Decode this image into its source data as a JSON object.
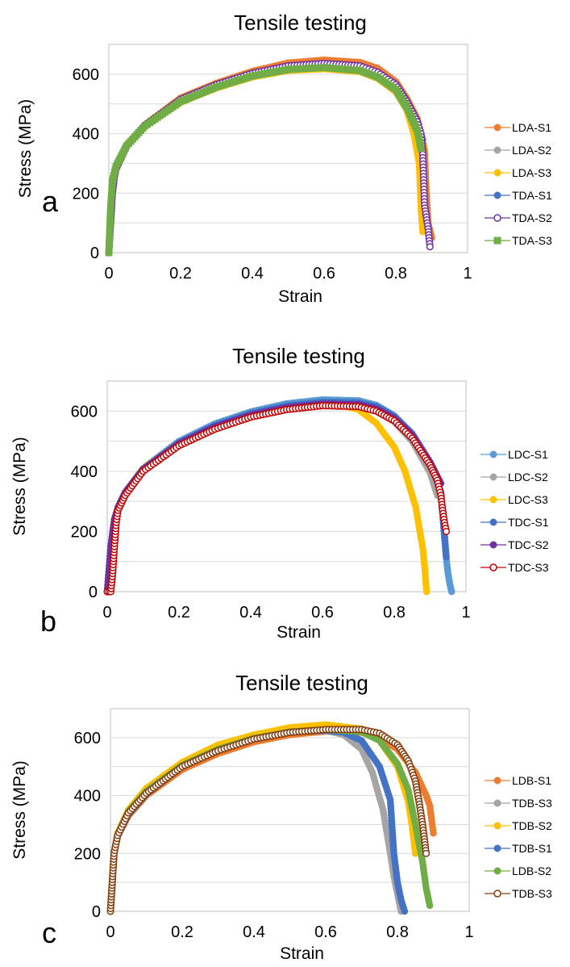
{
  "chart_data": [
    {
      "type": "scatter",
      "panel_letter": "a",
      "title": "Tensile testing",
      "xlabel": "Strain",
      "ylabel": "Stress (MPa)",
      "xlim": [
        0,
        1
      ],
      "ylim": [
        0,
        700
      ],
      "xticks": [
        "0",
        "0.2",
        "0.4",
        "0.6",
        "0.8",
        "1"
      ],
      "yticks": [
        "0",
        "200",
        "400",
        "600"
      ],
      "grid": true,
      "legend_position": "right",
      "series": [
        {
          "name": "LDA-S1",
          "color": "#ED7D31",
          "marker": "filled-circle",
          "x": [
            0,
            0.005,
            0.01,
            0.02,
            0.05,
            0.1,
            0.2,
            0.3,
            0.4,
            0.5,
            0.6,
            0.7,
            0.75,
            0.8,
            0.83,
            0.86,
            0.88,
            0.885,
            0.89,
            0.9
          ],
          "y": [
            0,
            150,
            240,
            290,
            360,
            430,
            520,
            570,
            610,
            638,
            648,
            640,
            620,
            575,
            520,
            450,
            345,
            200,
            100,
            50
          ]
        },
        {
          "name": "LDA-S2",
          "color": "#A5A5A5",
          "marker": "filled-circle",
          "x": [
            0,
            0.005,
            0.01,
            0.02,
            0.05,
            0.1,
            0.2,
            0.3,
            0.4,
            0.5,
            0.6,
            0.7,
            0.75,
            0.8,
            0.83,
            0.86,
            0.875,
            0.88
          ],
          "y": [
            0,
            150,
            240,
            290,
            360,
            425,
            510,
            560,
            598,
            622,
            630,
            622,
            600,
            560,
            505,
            430,
            330,
            250
          ]
        },
        {
          "name": "LDA-S3",
          "color": "#FFC000",
          "marker": "filled-circle",
          "x": [
            0,
            0.005,
            0.01,
            0.02,
            0.05,
            0.1,
            0.2,
            0.3,
            0.4,
            0.5,
            0.6,
            0.7,
            0.75,
            0.8,
            0.83,
            0.85,
            0.865,
            0.87,
            0.875
          ],
          "y": [
            0,
            150,
            240,
            290,
            360,
            425,
            505,
            553,
            590,
            612,
            618,
            608,
            585,
            540,
            480,
            400,
            300,
            150,
            70
          ]
        },
        {
          "name": "TDA-S1",
          "color": "#4472C4",
          "marker": "filled-circle",
          "x": [
            0,
            0.005,
            0.01,
            0.02,
            0.05,
            0.1,
            0.2,
            0.3,
            0.4,
            0.5,
            0.6,
            0.7,
            0.75,
            0.8,
            0.83,
            0.86,
            0.875
          ],
          "y": [
            0,
            150,
            240,
            290,
            362,
            428,
            515,
            565,
            603,
            628,
            636,
            628,
            606,
            565,
            510,
            440,
            380
          ]
        },
        {
          "name": "TDA-S2",
          "color": "#7030A0",
          "marker": "open-circle",
          "x": [
            0,
            0.005,
            0.01,
            0.015,
            0.02,
            0.05,
            0.1,
            0.2,
            0.3,
            0.4,
            0.5,
            0.6,
            0.7,
            0.75,
            0.8,
            0.83,
            0.86,
            0.87,
            0.875,
            0.88,
            0.885,
            0.89,
            0.895
          ],
          "y": [
            0,
            100,
            200,
            250,
            280,
            360,
            428,
            515,
            565,
            603,
            628,
            636,
            628,
            606,
            565,
            510,
            440,
            400,
            330,
            160,
            120,
            80,
            20
          ]
        },
        {
          "name": "TDA-S3",
          "color": "#70AD47",
          "marker": "filled-square",
          "x": [
            0,
            0.005,
            0.01,
            0.02,
            0.05,
            0.1,
            0.2,
            0.3,
            0.4,
            0.5,
            0.6,
            0.7,
            0.75,
            0.8,
            0.83,
            0.86,
            0.87
          ],
          "y": [
            0,
            150,
            240,
            290,
            360,
            425,
            508,
            557,
            594,
            616,
            622,
            612,
            590,
            548,
            490,
            410,
            350
          ]
        }
      ]
    },
    {
      "type": "scatter",
      "panel_letter": "b",
      "title": "Tensile testing",
      "xlabel": "Strain",
      "ylabel": "Stress (MPa)",
      "xlim": [
        0,
        1
      ],
      "ylim": [
        0,
        700
      ],
      "xticks": [
        "0",
        "0.2",
        "0.4",
        "0.6",
        "0.8",
        "1"
      ],
      "yticks": [
        "0",
        "200",
        "400",
        "600"
      ],
      "grid": true,
      "legend_position": "right",
      "series": [
        {
          "name": "LDC-S1",
          "color": "#5B9BD5",
          "marker": "filled-circle",
          "x": [
            0,
            0.01,
            0.02,
            0.03,
            0.05,
            0.1,
            0.2,
            0.3,
            0.4,
            0.5,
            0.6,
            0.7,
            0.75,
            0.8,
            0.85,
            0.9,
            0.93,
            0.94,
            0.945,
            0.95,
            0.955,
            0.96
          ],
          "y": [
            0,
            150,
            240,
            280,
            330,
            410,
            500,
            558,
            598,
            625,
            638,
            635,
            620,
            585,
            525,
            430,
            330,
            200,
            110,
            60,
            25,
            0
          ]
        },
        {
          "name": "LDC-S2",
          "color": "#A5A5A5",
          "marker": "filled-circle",
          "x": [
            0,
            0.01,
            0.02,
            0.03,
            0.05,
            0.1,
            0.2,
            0.3,
            0.4,
            0.5,
            0.6,
            0.7,
            0.75,
            0.8,
            0.85,
            0.9,
            0.92
          ],
          "y": [
            0,
            150,
            240,
            280,
            330,
            405,
            490,
            545,
            585,
            608,
            620,
            618,
            600,
            565,
            500,
            395,
            320
          ]
        },
        {
          "name": "LDC-S3",
          "color": "#FFC000",
          "marker": "filled-circle",
          "x": [
            0,
            0.01,
            0.02,
            0.03,
            0.05,
            0.1,
            0.2,
            0.3,
            0.4,
            0.5,
            0.6,
            0.65,
            0.7,
            0.75,
            0.8,
            0.83,
            0.86,
            0.88,
            0.885,
            0.89
          ],
          "y": [
            0,
            150,
            240,
            280,
            330,
            410,
            495,
            550,
            588,
            612,
            622,
            620,
            605,
            560,
            480,
            400,
            280,
            140,
            80,
            0
          ]
        },
        {
          "name": "TDC-S1",
          "color": "#4472C4",
          "marker": "filled-circle",
          "x": [
            0,
            0.01,
            0.02,
            0.03,
            0.05,
            0.1,
            0.2,
            0.3,
            0.4,
            0.5,
            0.6,
            0.7,
            0.75,
            0.8,
            0.85,
            0.9,
            0.93,
            0.94,
            0.945
          ],
          "y": [
            0,
            150,
            240,
            280,
            330,
            408,
            495,
            552,
            592,
            618,
            630,
            628,
            615,
            582,
            525,
            430,
            330,
            180,
            115
          ]
        },
        {
          "name": "TDC-S2",
          "color": "#7030A0",
          "marker": "filled-circle",
          "x": [
            0,
            0.01,
            0.02,
            0.03,
            0.05,
            0.1,
            0.2,
            0.3,
            0.4,
            0.5,
            0.6,
            0.7,
            0.75,
            0.8,
            0.85,
            0.9,
            0.93
          ],
          "y": [
            0,
            150,
            240,
            280,
            330,
            406,
            492,
            548,
            587,
            612,
            624,
            622,
            608,
            576,
            520,
            430,
            360
          ]
        },
        {
          "name": "TDC-S3",
          "color": "#C00000",
          "marker": "open-circle",
          "x": [
            0,
            0.01,
            0.015,
            0.02,
            0.025,
            0.03,
            0.05,
            0.1,
            0.2,
            0.3,
            0.4,
            0.5,
            0.6,
            0.7,
            0.75,
            0.8,
            0.85,
            0.9,
            0.92,
            0.93,
            0.935,
            0.94,
            0.945
          ],
          "y": [
            0,
            0,
            60,
            150,
            230,
            270,
            320,
            400,
            485,
            540,
            580,
            605,
            618,
            615,
            600,
            568,
            510,
            420,
            370,
            320,
            270,
            230,
            200
          ]
        }
      ]
    },
    {
      "type": "scatter",
      "panel_letter": "c",
      "title": "Tensile testing",
      "xlabel": "Strain",
      "ylabel": "Stress (MPa)",
      "xlim": [
        0,
        1
      ],
      "ylim": [
        0,
        700
      ],
      "xticks": [
        "0",
        "0.2",
        "0.4",
        "0.6",
        "0.8",
        "1"
      ],
      "yticks": [
        "0",
        "200",
        "400",
        "600"
      ],
      "grid": true,
      "legend_position": "right",
      "series": [
        {
          "name": "LDB-S1",
          "color": "#ED7D31",
          "marker": "filled-circle",
          "x": [
            0,
            0.005,
            0.01,
            0.02,
            0.05,
            0.1,
            0.2,
            0.3,
            0.4,
            0.5,
            0.6,
            0.7,
            0.75,
            0.8,
            0.85,
            0.88,
            0.89,
            0.9
          ],
          "y": [
            0,
            100,
            200,
            260,
            330,
            400,
            490,
            545,
            585,
            610,
            622,
            618,
            600,
            560,
            480,
            400,
            365,
            270
          ]
        },
        {
          "name": "TDB-S3",
          "color": "#A5A5A5",
          "marker": "filled-circle",
          "x": [
            0,
            0.005,
            0.01,
            0.02,
            0.05,
            0.1,
            0.2,
            0.3,
            0.4,
            0.5,
            0.6,
            0.65,
            0.7,
            0.73,
            0.76,
            0.78,
            0.79,
            0.8,
            0.81
          ],
          "y": [
            0,
            100,
            200,
            260,
            340,
            410,
            505,
            560,
            598,
            620,
            625,
            610,
            560,
            480,
            350,
            200,
            120,
            60,
            0
          ]
        },
        {
          "name": "TDB-S2",
          "color": "#FFC000",
          "marker": "filled-circle",
          "x": [
            0,
            0.005,
            0.01,
            0.02,
            0.05,
            0.1,
            0.2,
            0.3,
            0.4,
            0.5,
            0.6,
            0.7,
            0.75,
            0.8,
            0.83,
            0.84,
            0.85
          ],
          "y": [
            0,
            100,
            200,
            270,
            350,
            425,
            515,
            575,
            610,
            635,
            645,
            630,
            590,
            500,
            380,
            300,
            200
          ]
        },
        {
          "name": "TDB-S1",
          "color": "#4472C4",
          "marker": "filled-circle",
          "x": [
            0,
            0.005,
            0.01,
            0.02,
            0.05,
            0.1,
            0.2,
            0.3,
            0.4,
            0.5,
            0.6,
            0.65,
            0.7,
            0.75,
            0.78,
            0.79,
            0.8,
            0.81,
            0.82
          ],
          "y": [
            0,
            100,
            200,
            260,
            335,
            405,
            500,
            555,
            595,
            620,
            625,
            618,
            590,
            500,
            385,
            200,
            100,
            40,
            0
          ]
        },
        {
          "name": "LDB-S2",
          "color": "#70AD47",
          "marker": "filled-circle",
          "x": [
            0,
            0.005,
            0.01,
            0.02,
            0.05,
            0.1,
            0.2,
            0.3,
            0.4,
            0.5,
            0.6,
            0.7,
            0.75,
            0.8,
            0.83,
            0.85,
            0.87,
            0.88,
            0.89
          ],
          "y": [
            0,
            100,
            200,
            265,
            345,
            415,
            505,
            560,
            598,
            620,
            628,
            620,
            590,
            510,
            420,
            300,
            170,
            80,
            20
          ]
        },
        {
          "name": "TDB-S3",
          "color": "#843C0C",
          "marker": "open-circle",
          "x": [
            0,
            0.005,
            0.01,
            0.02,
            0.05,
            0.1,
            0.2,
            0.3,
            0.4,
            0.5,
            0.6,
            0.7,
            0.75,
            0.8,
            0.83,
            0.85,
            0.86,
            0.87,
            0.875,
            0.88
          ],
          "y": [
            0,
            100,
            200,
            262,
            340,
            408,
            500,
            555,
            595,
            618,
            628,
            628,
            615,
            575,
            520,
            450,
            380,
            300,
            250,
            200
          ]
        }
      ]
    }
  ]
}
